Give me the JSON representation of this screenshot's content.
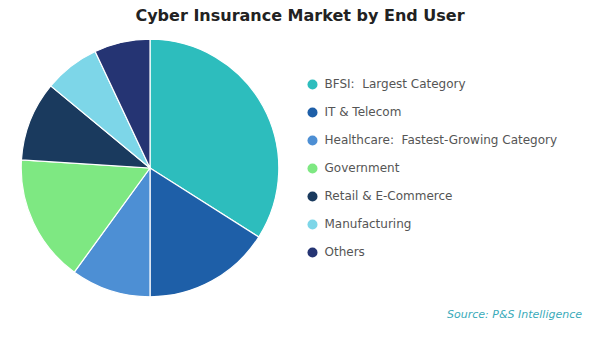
{
  "chart_data": {
    "type": "pie",
    "title": "Cyber Insurance Market by End User",
    "caption": "Source: P&S Intelligence",
    "categories": [
      "BFSI:  Largest Category",
      "IT & Telecom",
      "Healthcare:  Fastest-Growing Category",
      "Government",
      "Retail & E-Commerce",
      "Manufacturing",
      "Others"
    ],
    "values": [
      34,
      16,
      10,
      16,
      10,
      7,
      7
    ],
    "colors": [
      "#2DBDBD",
      "#1E5FA8",
      "#4D8FD4",
      "#7EE882",
      "#1A3A5E",
      "#7DD6E8",
      "#253473"
    ],
    "legend": "right"
  }
}
